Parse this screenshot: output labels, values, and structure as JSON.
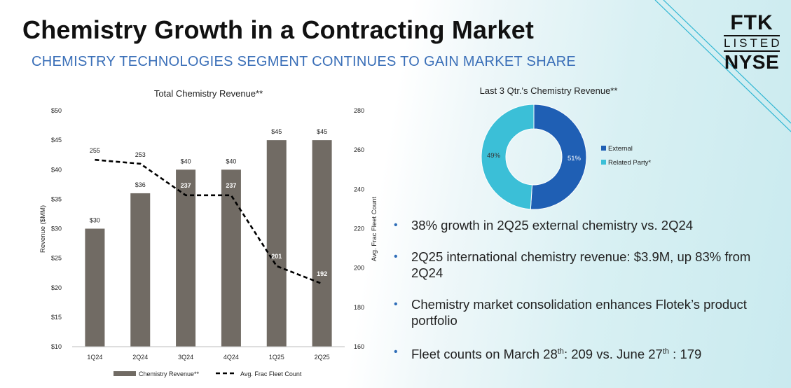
{
  "header": {
    "title": "Chemistry Growth in a Contracting Market",
    "subtitle": "CHEMISTRY TECHNOLOGIES SEGMENT CONTINUES TO GAIN MARKET SHARE"
  },
  "logo": {
    "ticker": "FTK",
    "listed": "LISTED",
    "exchange": "NYSE"
  },
  "chart_data": [
    {
      "type": "bar",
      "title": "Total Chemistry Revenue**",
      "categories": [
        "1Q24",
        "2Q24",
        "3Q24",
        "4Q24",
        "1Q25",
        "2Q25"
      ],
      "series": [
        {
          "name": "Chemistry Revenue**",
          "type": "bar",
          "axis": "left",
          "values": [
            30,
            36,
            40,
            40,
            45,
            45
          ],
          "data_labels": [
            "$30",
            "$36",
            "$40",
            "$40",
            "$45",
            "$45"
          ],
          "color": "#716b64"
        },
        {
          "name": "Avg. Frac Fleet Count",
          "type": "line",
          "axis": "right",
          "values": [
            255,
            253,
            237,
            237,
            201,
            192
          ],
          "data_labels": [
            "255",
            "253",
            "237",
            "237",
            "201",
            "192"
          ],
          "color": "#000000"
        }
      ],
      "ylabel": "Revenue ($MM)",
      "y2label": "Avg. Frac Fleet Count",
      "ylim": [
        10,
        50
      ],
      "y2lim": [
        160,
        280
      ],
      "yticks": [
        "$10",
        "$15",
        "$20",
        "$25",
        "$30",
        "$35",
        "$40",
        "$45",
        "$50"
      ],
      "y2ticks": [
        "160",
        "180",
        "200",
        "220",
        "240",
        "260",
        "280"
      ],
      "legend": "bottom"
    },
    {
      "type": "pie",
      "title": "Last 3 Qtr.'s Chemistry Revenue**",
      "labels": [
        "External",
        "Related Party*"
      ],
      "values": [
        51,
        49
      ],
      "value_labels": [
        "51%",
        "49%"
      ],
      "colors": [
        "#1f5fb4",
        "#3bbfd7"
      ],
      "legend": "right"
    }
  ],
  "bullets": [
    {
      "text": "38% growth in 2Q25 external chemistry vs. 2Q24"
    },
    {
      "text": "2Q25 international chemistry revenue: $3.9M, up 83% from 2Q24"
    },
    {
      "text": "Chemistry market consolidation enhances Flotek’s product portfolio"
    },
    {
      "pre": "Fleet counts on March 28",
      "sup1": "th",
      "mid": ": 209 vs. June 27",
      "sup2": "th",
      "post": " : 179"
    }
  ]
}
